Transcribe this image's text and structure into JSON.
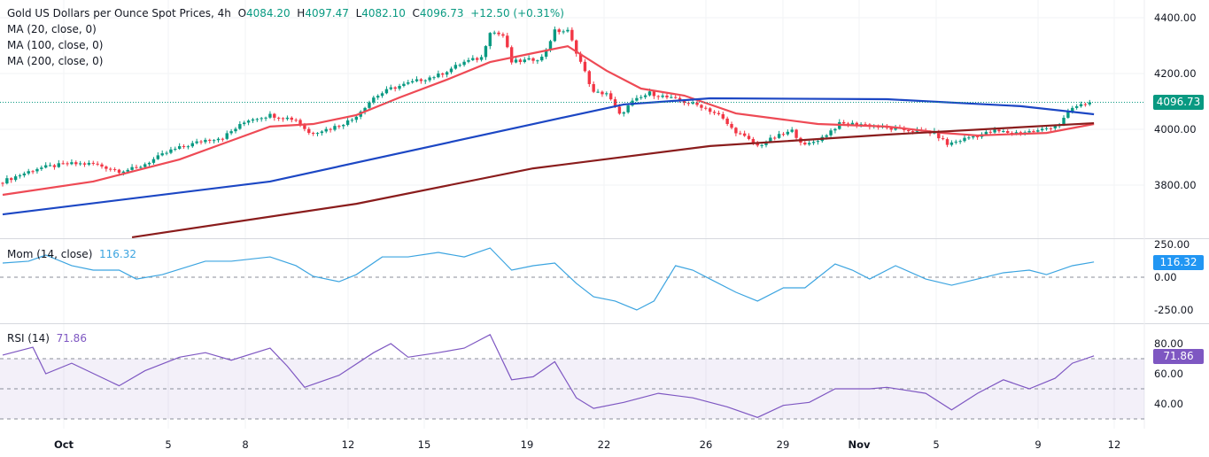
{
  "header": {
    "title": "Gold US Dollars per Ounce Spot Prices, 4h",
    "open_label": "O",
    "open": "4084.20",
    "high_label": "H",
    "high": "4097.47",
    "low_label": "L",
    "low": "4082.10",
    "close_label": "C",
    "close": "4096.73",
    "change": "+12.50 (+0.31%)"
  },
  "chart_data": [
    {
      "type": "candlestick",
      "title": "Gold US Dollars per Ounce Spot Prices, 4h",
      "ylim": [
        3590,
        4460
      ],
      "y_ticks": [
        "4400.00",
        "4200.00",
        "4000.00",
        "3800.00"
      ],
      "last_price": "4096.73",
      "close_keyframes": [
        [
          0,
          3813
        ],
        [
          8,
          3860
        ],
        [
          15,
          3876
        ],
        [
          21,
          3876
        ],
        [
          27,
          3851
        ],
        [
          31,
          3860
        ],
        [
          39,
          3924
        ],
        [
          47,
          3962
        ],
        [
          51,
          3971
        ],
        [
          57,
          4035
        ],
        [
          62,
          4051
        ],
        [
          68,
          4035
        ],
        [
          71,
          3987
        ],
        [
          76,
          4003
        ],
        [
          81,
          4035
        ],
        [
          86,
          4114
        ],
        [
          90,
          4146
        ],
        [
          97,
          4178
        ],
        [
          101,
          4194
        ],
        [
          107,
          4241
        ],
        [
          111,
          4257
        ],
        [
          113,
          4352
        ],
        [
          116,
          4336
        ],
        [
          118,
          4241
        ],
        [
          122,
          4248
        ],
        [
          125,
          4257
        ],
        [
          128,
          4352
        ],
        [
          131,
          4352
        ],
        [
          134,
          4241
        ],
        [
          137,
          4130
        ],
        [
          140,
          4130
        ],
        [
          143,
          4051
        ],
        [
          146,
          4098
        ],
        [
          150,
          4130
        ],
        [
          154,
          4114
        ],
        [
          158,
          4098
        ],
        [
          162,
          4083
        ],
        [
          166,
          4051
        ],
        [
          169,
          4003
        ],
        [
          175,
          3940
        ],
        [
          179,
          3971
        ],
        [
          183,
          3994
        ],
        [
          186,
          3940
        ],
        [
          190,
          3971
        ],
        [
          194,
          4019
        ],
        [
          199,
          4019
        ],
        [
          205,
          4003
        ],
        [
          212,
          3994
        ],
        [
          216,
          3987
        ],
        [
          219,
          3946
        ],
        [
          224,
          3971
        ],
        [
          230,
          3994
        ],
        [
          234,
          3987
        ],
        [
          240,
          3994
        ],
        [
          245,
          4019
        ],
        [
          248,
          4076
        ],
        [
          252,
          4097
        ]
      ],
      "series": [
        {
          "name": "MA (20, close, 0)",
          "color": "#ee4a55",
          "points": [
            [
              0,
              3765
            ],
            [
              21,
              3813
            ],
            [
              41,
              3892
            ],
            [
              62,
              4010
            ],
            [
              72,
              4019
            ],
            [
              82,
              4051
            ],
            [
              92,
              4114
            ],
            [
              103,
              4178
            ],
            [
              113,
              4241
            ],
            [
              123,
              4273
            ],
            [
              131,
              4298
            ],
            [
              140,
              4210
            ],
            [
              148,
              4146
            ],
            [
              158,
              4121
            ],
            [
              170,
              4057
            ],
            [
              181,
              4035
            ],
            [
              189,
              4019
            ],
            [
              205,
              4010
            ],
            [
              218,
              3987
            ],
            [
              226,
              3978
            ],
            [
              242,
              3987
            ],
            [
              253,
              4019
            ]
          ]
        },
        {
          "name": "MA (100, close, 0)",
          "color": "#1c47c4",
          "points": [
            [
              0,
              3695
            ],
            [
              62,
              3813
            ],
            [
              123,
              4019
            ],
            [
              144,
              4089
            ],
            [
              164,
              4111
            ],
            [
              205,
              4108
            ],
            [
              236,
              4083
            ],
            [
              253,
              4054
            ]
          ]
        },
        {
          "name": "MA (200, close, 0)",
          "color": "#8a1c1c",
          "points": [
            [
              30,
              3613
            ],
            [
              82,
              3733
            ],
            [
              123,
              3860
            ],
            [
              164,
              3940
            ],
            [
              205,
              3981
            ],
            [
              253,
              4022
            ]
          ]
        }
      ]
    },
    {
      "type": "line",
      "title": "Mom (14, close)",
      "value": "116.32",
      "color": "#3ba4e0",
      "ylim": [
        -340,
        300
      ],
      "y_ticks": [
        "250.00",
        "0.00",
        "-250.00"
      ],
      "points": [
        [
          0,
          108
        ],
        [
          6,
          122
        ],
        [
          10,
          169
        ],
        [
          16,
          88
        ],
        [
          21,
          54
        ],
        [
          27,
          54
        ],
        [
          31,
          -14
        ],
        [
          37,
          20
        ],
        [
          47,
          122
        ],
        [
          53,
          122
        ],
        [
          62,
          155
        ],
        [
          68,
          88
        ],
        [
          72,
          7
        ],
        [
          78,
          -34
        ],
        [
          82,
          20
        ],
        [
          88,
          155
        ],
        [
          94,
          155
        ],
        [
          101,
          189
        ],
        [
          107,
          155
        ],
        [
          113,
          223
        ],
        [
          118,
          54
        ],
        [
          123,
          88
        ],
        [
          128,
          108
        ],
        [
          133,
          -47
        ],
        [
          137,
          -149
        ],
        [
          142,
          -182
        ],
        [
          147,
          -250
        ],
        [
          151,
          -182
        ],
        [
          156,
          88
        ],
        [
          160,
          54
        ],
        [
          164,
          -14
        ],
        [
          170,
          -115
        ],
        [
          175,
          -182
        ],
        [
          181,
          -81
        ],
        [
          186,
          -81
        ],
        [
          193,
          101
        ],
        [
          197,
          54
        ],
        [
          201,
          -14
        ],
        [
          207,
          88
        ],
        [
          214,
          -14
        ],
        [
          220,
          -61
        ],
        [
          226,
          -14
        ],
        [
          232,
          34
        ],
        [
          238,
          54
        ],
        [
          242,
          20
        ],
        [
          248,
          88
        ],
        [
          253,
          116.32
        ]
      ]
    },
    {
      "type": "line",
      "title": "RSI (14)",
      "value": "71.86",
      "color": "#7e57c2",
      "ylim": [
        23,
        87
      ],
      "y_ticks": [
        "80.00",
        "60.00",
        "40.00"
      ],
      "bands": [
        70,
        50,
        30
      ],
      "points": [
        [
          0,
          72.4
        ],
        [
          7,
          77.6
        ],
        [
          10,
          60
        ],
        [
          16,
          67
        ],
        [
          27,
          52
        ],
        [
          33,
          62
        ],
        [
          41,
          71
        ],
        [
          47,
          74
        ],
        [
          53,
          69
        ],
        [
          62,
          77
        ],
        [
          66,
          65
        ],
        [
          70,
          51
        ],
        [
          78,
          59
        ],
        [
          86,
          74
        ],
        [
          90,
          80
        ],
        [
          94,
          71
        ],
        [
          101,
          74
        ],
        [
          107,
          77
        ],
        [
          113,
          86
        ],
        [
          118,
          56
        ],
        [
          123,
          58
        ],
        [
          128,
          68
        ],
        [
          133,
          44
        ],
        [
          137,
          37
        ],
        [
          144,
          41
        ],
        [
          152,
          47
        ],
        [
          160,
          44
        ],
        [
          168,
          38
        ],
        [
          175,
          31
        ],
        [
          181,
          39
        ],
        [
          187,
          41
        ],
        [
          193,
          50
        ],
        [
          201,
          50
        ],
        [
          205,
          51
        ],
        [
          214,
          47
        ],
        [
          220,
          36
        ],
        [
          226,
          47
        ],
        [
          232,
          56
        ],
        [
          238,
          50
        ],
        [
          244,
          57
        ],
        [
          248,
          67
        ],
        [
          253,
          71.86
        ]
      ]
    }
  ],
  "x_ticks": [
    [
      "Oct",
      72
    ],
    [
      "5",
      190
    ],
    [
      "8",
      277
    ],
    [
      "12",
      393
    ],
    [
      "15",
      479
    ],
    [
      "19",
      595
    ],
    [
      "22",
      682
    ],
    [
      "26",
      797
    ],
    [
      "29",
      884
    ],
    [
      "Nov",
      970
    ],
    [
      "5",
      1057
    ],
    [
      "9",
      1172
    ],
    [
      "12",
      1258
    ]
  ],
  "colors": {
    "up": "#089981",
    "down": "#f23645"
  }
}
